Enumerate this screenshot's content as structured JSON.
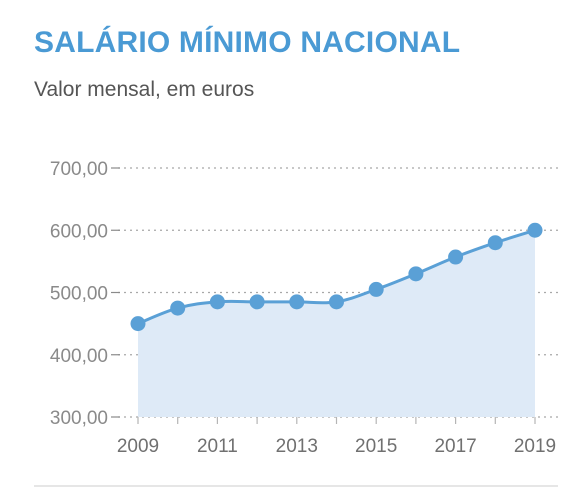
{
  "title": "SALÁRIO MÍNIMO NACIONAL",
  "subtitle": "Valor mensal, em euros",
  "colors": {
    "title": "#4a9ad4",
    "line": "#5aa0d6",
    "area": "#deeaf7",
    "grid": "#a8a8a8"
  },
  "chart_data": {
    "type": "area",
    "x": [
      2009,
      2010,
      2011,
      2012,
      2013,
      2014,
      2015,
      2016,
      2017,
      2018,
      2019
    ],
    "values": [
      450,
      475,
      485,
      485,
      485,
      485,
      505,
      530,
      557,
      580,
      600
    ],
    "ylim": [
      300,
      700
    ],
    "yticks": [
      "300,00",
      "400,00",
      "500,00",
      "600,00",
      "700,00"
    ],
    "xticks": [
      "2009",
      "2011",
      "2013",
      "2015",
      "2017",
      "2019"
    ],
    "grid": "horizontal-dotted",
    "legend": "none"
  }
}
